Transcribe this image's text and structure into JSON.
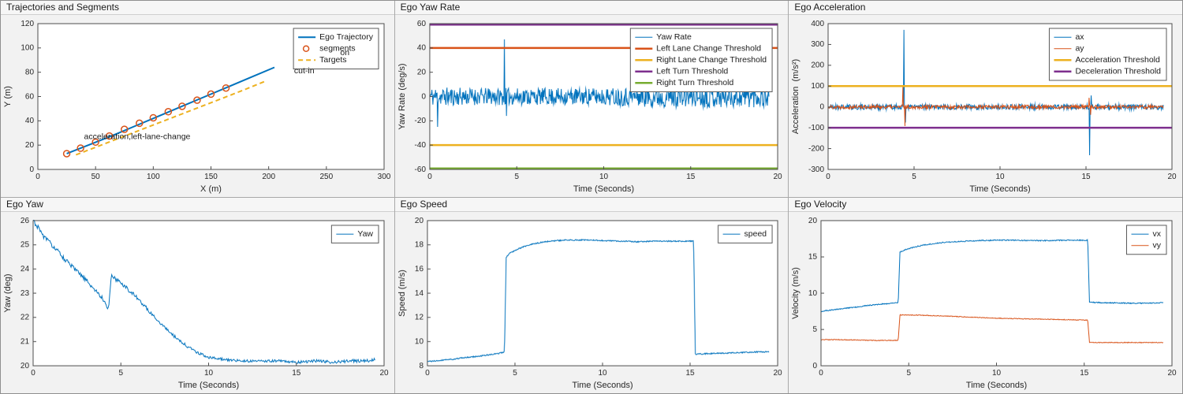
{
  "palette": {
    "blue": "#0072BD",
    "orange": "#D95319",
    "yellow": "#EDB120",
    "purple": "#7E2F8E",
    "green": "#77AC30"
  },
  "chart_data": [
    {
      "type": "line",
      "title": "Trajectories and Segments",
      "xlabel": "X (m)",
      "ylabel": "Y (m)",
      "xlim": [
        0,
        300
      ],
      "ylim": [
        0,
        120
      ],
      "xticks": [
        0,
        50,
        100,
        150,
        200,
        250,
        300
      ],
      "yticks": [
        0,
        20,
        40,
        60,
        80,
        100,
        120
      ],
      "series": [
        {
          "name": "Ego Trajectory",
          "type": "line",
          "color": "#0072BD",
          "width": 2,
          "points": [
            [
              25,
              13
            ],
            [
              45,
              20.5
            ],
            [
              65,
              28
            ],
            [
              85,
              36
            ],
            [
              105,
              44
            ],
            [
              125,
              52
            ],
            [
              145,
              60
            ],
            [
              165,
              68
            ],
            [
              185,
              76
            ],
            [
              205,
              84
            ]
          ]
        },
        {
          "name": "segments",
          "type": "scatter",
          "color": "#D95319",
          "points": [
            [
              25,
              13
            ],
            [
              37,
              17.5
            ],
            [
              50,
              22.5
            ],
            [
              62,
              27.5
            ],
            [
              75,
              33
            ],
            [
              88,
              38
            ],
            [
              100,
              42.5
            ],
            [
              113,
              47.5
            ],
            [
              125,
              52
            ],
            [
              138,
              57
            ],
            [
              150,
              62
            ],
            [
              163,
              67
            ]
          ]
        },
        {
          "name": "Targets",
          "type": "line",
          "color": "#EDB120",
          "width": 2,
          "dash": [
            6,
            4
          ],
          "points": [
            [
              33,
              12
            ],
            [
              63,
              23
            ],
            [
              93,
              34
            ],
            [
              123,
              45
            ],
            [
              153,
              56
            ],
            [
              180,
              66
            ],
            [
              198,
              73
            ]
          ]
        }
      ],
      "annotations": [
        {
          "text": "acceleration,left-lane-change",
          "x": 40,
          "y": 27
        },
        {
          "text": "on",
          "x": 262,
          "y": 96
        },
        {
          "text": "cut-in",
          "x": 222,
          "y": 81
        }
      ]
    },
    {
      "type": "line",
      "title": "Ego Yaw Rate",
      "xlabel": "Time (Seconds)",
      "ylabel": "Yaw Rate (deg/s)",
      "xlim": [
        0,
        20
      ],
      "ylim": [
        -60,
        60
      ],
      "xticks": [
        0,
        5,
        10,
        15,
        20
      ],
      "yticks": [
        -60,
        -40,
        -20,
        0,
        20,
        40,
        60
      ],
      "series": [
        {
          "name": "Yaw Rate",
          "type": "noisy",
          "color": "#0072BD",
          "width": 1,
          "range": [
            0,
            19.5
          ],
          "dt": 0.03,
          "seed": 11,
          "keypoints": [
            [
              0,
              0
            ],
            [
              19.5,
              0
            ]
          ],
          "noise": [
            [
              0,
              8
            ],
            [
              3,
              7
            ],
            [
              10,
              7
            ],
            [
              13,
              9
            ],
            [
              19.5,
              9
            ]
          ],
          "spikes": [
            [
              0.45,
              -25
            ],
            [
              4.3,
              47
            ],
            [
              4.42,
              -16
            ]
          ]
        },
        {
          "name": "Left Lane Change Threshold",
          "type": "hline",
          "y": 40,
          "color": "#D95319",
          "width": 2.5
        },
        {
          "name": "Right Lane Change Threshold",
          "type": "hline",
          "y": -40,
          "color": "#EDB120",
          "width": 2.5
        },
        {
          "name": "Left Turn Threshold",
          "type": "hline",
          "y": 60,
          "color": "#7E2F8E",
          "width": 2.5
        },
        {
          "name": "Right Turn Threshold",
          "type": "hline",
          "y": -60,
          "color": "#77AC30",
          "width": 2.5
        }
      ]
    },
    {
      "type": "line",
      "title": "Ego Acceleration",
      "xlabel": "Time (Seconds)",
      "ylabel": "Acceleration  (m/s²)",
      "xlim": [
        0,
        20
      ],
      "ylim": [
        -300,
        400
      ],
      "xticks": [
        0,
        5,
        10,
        15,
        20
      ],
      "yticks": [
        -300,
        -200,
        -100,
        0,
        100,
        200,
        300,
        400
      ],
      "series": [
        {
          "name": "ax",
          "type": "noisy",
          "color": "#0072BD",
          "width": 1,
          "range": [
            0,
            19.5
          ],
          "dt": 0.03,
          "seed": 21,
          "keypoints": [
            [
              0,
              0
            ],
            [
              19.5,
              0
            ]
          ],
          "noise": 13,
          "spikes": [
            [
              4.4,
              370
            ],
            [
              4.5,
              -75
            ],
            [
              15.2,
              -232
            ],
            [
              15.3,
              55
            ]
          ]
        },
        {
          "name": "ay",
          "type": "noisy",
          "color": "#D95319",
          "width": 1,
          "range": [
            0,
            19.5
          ],
          "dt": 0.03,
          "seed": 22,
          "keypoints": [
            [
              0,
              0
            ],
            [
              19.5,
              0
            ]
          ],
          "noise": 9,
          "spikes": [
            [
              4.36,
              96
            ],
            [
              4.46,
              -92
            ],
            [
              15.18,
              44
            ],
            [
              15.26,
              -38
            ]
          ]
        },
        {
          "name": "Acceleration Threshold",
          "type": "hline",
          "y": 100,
          "color": "#EDB120",
          "width": 2.5
        },
        {
          "name": "Deceleration Threshold",
          "type": "hline",
          "y": -100,
          "color": "#7E2F8E",
          "width": 2.5
        }
      ]
    },
    {
      "type": "line",
      "title": "Ego Yaw",
      "xlabel": "Time (Seconds)",
      "ylabel": "Yaw (deg)",
      "xlim": [
        0,
        20
      ],
      "ylim": [
        20,
        26
      ],
      "xticks": [
        0,
        5,
        10,
        15,
        20
      ],
      "yticks": [
        20,
        21,
        22,
        23,
        24,
        25,
        26
      ],
      "series": [
        {
          "name": "Yaw",
          "type": "noisy",
          "color": "#0072BD",
          "width": 1,
          "range": [
            0,
            19.5
          ],
          "dt": 0.04,
          "seed": 31,
          "keypoints": [
            [
              0,
              26
            ],
            [
              0.3,
              25.7
            ],
            [
              0.6,
              25.35
            ],
            [
              1,
              25.05
            ],
            [
              1.5,
              24.65
            ],
            [
              2,
              24.25
            ],
            [
              2.5,
              23.9
            ],
            [
              3,
              23.55
            ],
            [
              3.5,
              23.15
            ],
            [
              4,
              22.75
            ],
            [
              4.3,
              22.35
            ],
            [
              4.45,
              23.7
            ],
            [
              5,
              23.45
            ],
            [
              5.5,
              23.1
            ],
            [
              6,
              22.75
            ],
            [
              6.5,
              22.35
            ],
            [
              7,
              21.95
            ],
            [
              7.5,
              21.6
            ],
            [
              8,
              21.25
            ],
            [
              8.5,
              20.95
            ],
            [
              9,
              20.7
            ],
            [
              9.5,
              20.5
            ],
            [
              10,
              20.35
            ],
            [
              10.5,
              20.3
            ],
            [
              11,
              20.25
            ],
            [
              12,
              20.2
            ],
            [
              13,
              20.2
            ],
            [
              14,
              20.2
            ],
            [
              15,
              20.15
            ],
            [
              16,
              20.2
            ],
            [
              17,
              20.15
            ],
            [
              18,
              20.2
            ],
            [
              19,
              20.2
            ],
            [
              19.5,
              20.25
            ]
          ],
          "noise": [
            [
              0,
              0.1
            ],
            [
              4,
              0.09
            ],
            [
              6,
              0.08
            ],
            [
              10,
              0.05
            ],
            [
              19.5,
              0.07
            ]
          ]
        }
      ]
    },
    {
      "type": "line",
      "title": "Ego Speed",
      "xlabel": "Time (Seconds)",
      "ylabel": "Speed (m/s)",
      "xlim": [
        0,
        20
      ],
      "ylim": [
        8,
        20
      ],
      "xticks": [
        0,
        5,
        10,
        15,
        20
      ],
      "yticks": [
        8,
        10,
        12,
        14,
        16,
        18,
        20
      ],
      "series": [
        {
          "name": "speed",
          "type": "noisy",
          "color": "#0072BD",
          "width": 1,
          "range": [
            0,
            19.5
          ],
          "dt": 0.03,
          "seed": 41,
          "keypoints": [
            [
              0,
              8.35
            ],
            [
              0.5,
              8.4
            ],
            [
              1,
              8.5
            ],
            [
              1.5,
              8.55
            ],
            [
              2,
              8.65
            ],
            [
              2.5,
              8.72
            ],
            [
              3,
              8.8
            ],
            [
              3.5,
              8.9
            ],
            [
              4,
              9.0
            ],
            [
              4.3,
              9.1
            ],
            [
              4.4,
              9.15
            ],
            [
              4.5,
              17.0
            ],
            [
              4.7,
              17.3
            ],
            [
              5,
              17.55
            ],
            [
              5.5,
              17.85
            ],
            [
              6,
              18.05
            ],
            [
              6.5,
              18.2
            ],
            [
              7,
              18.3
            ],
            [
              7.5,
              18.35
            ],
            [
              8,
              18.4
            ],
            [
              9,
              18.4
            ],
            [
              10,
              18.35
            ],
            [
              11,
              18.3
            ],
            [
              12,
              18.25
            ],
            [
              13,
              18.3
            ],
            [
              14,
              18.3
            ],
            [
              15,
              18.3
            ],
            [
              15.2,
              18.3
            ],
            [
              15.3,
              8.95
            ],
            [
              16,
              9.0
            ],
            [
              17,
              9.05
            ],
            [
              18,
              9.1
            ],
            [
              19,
              9.15
            ],
            [
              19.5,
              9.15
            ]
          ],
          "noise": 0.05
        }
      ]
    },
    {
      "type": "line",
      "title": "Ego Velocity",
      "xlabel": "Time (Seconds)",
      "ylabel": "Velocity (m/s)",
      "xlim": [
        0,
        20
      ],
      "ylim": [
        0,
        20
      ],
      "xticks": [
        0,
        5,
        10,
        15,
        20
      ],
      "yticks": [
        0,
        5,
        10,
        15,
        20
      ],
      "series": [
        {
          "name": "vx",
          "type": "noisy",
          "color": "#0072BD",
          "width": 1,
          "range": [
            0,
            19.5
          ],
          "dt": 0.03,
          "seed": 51,
          "keypoints": [
            [
              0,
              7.5
            ],
            [
              0.5,
              7.65
            ],
            [
              1,
              7.8
            ],
            [
              1.5,
              7.95
            ],
            [
              2,
              8.1
            ],
            [
              2.5,
              8.25
            ],
            [
              3,
              8.4
            ],
            [
              3.5,
              8.5
            ],
            [
              4,
              8.6
            ],
            [
              4.4,
              8.7
            ],
            [
              4.5,
              15.7
            ],
            [
              5,
              16.15
            ],
            [
              5.5,
              16.45
            ],
            [
              6,
              16.7
            ],
            [
              6.5,
              16.85
            ],
            [
              7,
              17.0
            ],
            [
              8,
              17.15
            ],
            [
              9,
              17.25
            ],
            [
              10,
              17.3
            ],
            [
              11,
              17.3
            ],
            [
              12,
              17.25
            ],
            [
              13,
              17.25
            ],
            [
              14,
              17.3
            ],
            [
              15,
              17.3
            ],
            [
              15.2,
              17.3
            ],
            [
              15.3,
              8.75
            ],
            [
              16,
              8.7
            ],
            [
              17,
              8.65
            ],
            [
              18,
              8.6
            ],
            [
              19,
              8.65
            ],
            [
              19.5,
              8.7
            ]
          ],
          "noise": 0.07
        },
        {
          "name": "vy",
          "type": "noisy",
          "color": "#D95319",
          "width": 1,
          "range": [
            0,
            19.5
          ],
          "dt": 0.03,
          "seed": 52,
          "keypoints": [
            [
              0,
              3.6
            ],
            [
              1,
              3.6
            ],
            [
              2,
              3.55
            ],
            [
              3,
              3.5
            ],
            [
              4,
              3.5
            ],
            [
              4.4,
              3.5
            ],
            [
              4.5,
              7.0
            ],
            [
              5,
              7.0
            ],
            [
              6,
              6.95
            ],
            [
              7,
              6.85
            ],
            [
              8,
              6.75
            ],
            [
              9,
              6.65
            ],
            [
              10,
              6.55
            ],
            [
              11,
              6.5
            ],
            [
              12,
              6.45
            ],
            [
              13,
              6.4
            ],
            [
              14,
              6.35
            ],
            [
              15,
              6.3
            ],
            [
              15.2,
              6.3
            ],
            [
              15.3,
              3.2
            ],
            [
              16,
              3.2
            ],
            [
              17,
              3.2
            ],
            [
              18,
              3.2
            ],
            [
              19,
              3.2
            ],
            [
              19.5,
              3.2
            ]
          ],
          "noise": 0.05
        }
      ]
    }
  ]
}
